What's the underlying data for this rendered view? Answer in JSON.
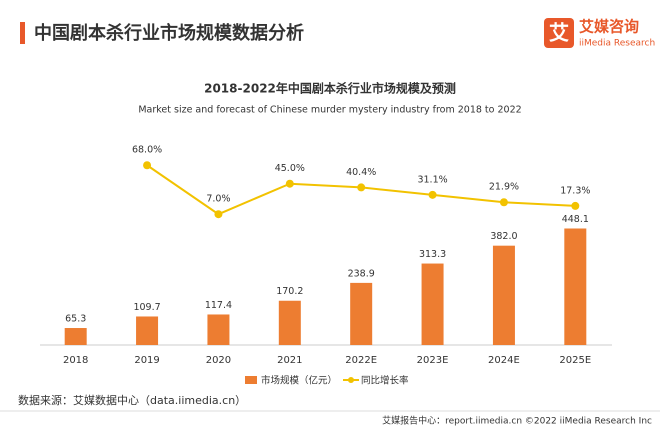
{
  "page": {
    "header": "中国剧本杀行业市场规模数据分析",
    "logo_mark": "艾",
    "logo_name": "艾媒咨询",
    "logo_sub": "iiMedia Research",
    "source": "数据来源：艾媒数据中心（data.iimedia.cn）",
    "footer": "艾媒报告中心：report.iimedia.cn  ©2022  iiMedia Research  Inc"
  },
  "chart_data": {
    "type": "bar",
    "title": "2018-2022年中国剧本杀行业市场规模及预测",
    "subtitle": "Market size and forecast of Chinese murder mystery industry from 2018 to 2022",
    "categories": [
      "2018",
      "2019",
      "2020",
      "2021",
      "2022E",
      "2023E",
      "2024E",
      "2025E"
    ],
    "ylim": [
      0,
      750
    ],
    "y2lim": [
      -156,
      87
    ],
    "series": [
      {
        "name": "市场规模（亿元）",
        "type": "bar",
        "color": "#ed7d31",
        "values": [
          65.3,
          109.7,
          117.4,
          170.2,
          238.9,
          313.3,
          382.0,
          448.1
        ],
        "value_labels": [
          "65.3",
          "109.7",
          "117.4",
          "170.2",
          "238.9",
          "313.3",
          "382.0",
          "448.1"
        ]
      },
      {
        "name": "同比增长率",
        "type": "line",
        "axis": "y2",
        "color": "#f2c200",
        "values": [
          null,
          68.0,
          7.0,
          45.0,
          40.4,
          31.1,
          21.9,
          17.3
        ],
        "value_labels": [
          null,
          "68.0%",
          "7.0%",
          "45.0%",
          "40.4%",
          "31.1%",
          "21.9%",
          "17.3%"
        ]
      }
    ]
  }
}
